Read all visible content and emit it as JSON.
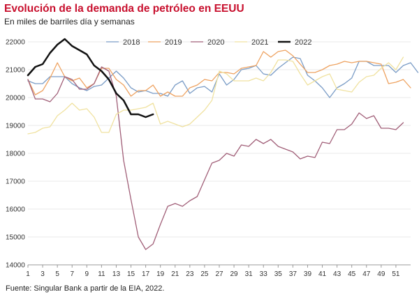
{
  "chart_data": {
    "type": "line",
    "title": "Evolución de la demanda de petróleo en EEUU",
    "subtitle": "En miles de barriles día y semanas",
    "source": "Fuente:  Singular Bank a partir de la EIA, 2022.",
    "ylim": [
      14000,
      22000
    ],
    "yticks": [
      14000,
      15000,
      16000,
      17000,
      18000,
      19000,
      20000,
      21000,
      22000
    ],
    "xlim": [
      1,
      53
    ],
    "xticks": [
      1,
      3,
      5,
      7,
      9,
      11,
      13,
      15,
      17,
      19,
      21,
      23,
      25,
      27,
      29,
      31,
      33,
      35,
      37,
      39,
      41,
      43,
      45,
      47,
      49,
      51
    ],
    "legend_position": "top-right",
    "series": [
      {
        "name": "2018",
        "color": "#7a9cc6",
        "width": 1.3,
        "values": [
          20600,
          20500,
          20500,
          20750,
          20750,
          20750,
          20500,
          20350,
          20250,
          20400,
          20450,
          20700,
          20950,
          20700,
          20350,
          20200,
          20250,
          20150,
          20150,
          20050,
          20450,
          20600,
          20150,
          20350,
          20400,
          20200,
          20850,
          20450,
          20650,
          21000,
          21050,
          21150,
          20850,
          20800,
          21050,
          21250,
          21450,
          21400,
          20800,
          20600,
          20350,
          20000,
          20350,
          20500,
          20700,
          21300,
          21300,
          21150,
          21150,
          21150,
          20900,
          21150,
          21250,
          20900
        ]
      },
      {
        "name": "2019",
        "color": "#eea260",
        "width": 1.3,
        "values": [
          20650,
          20100,
          20250,
          20700,
          21250,
          20750,
          20600,
          20700,
          20350,
          20500,
          21050,
          21050,
          20650,
          20450,
          20050,
          20250,
          20250,
          20450,
          20050,
          20200,
          20050,
          20050,
          20350,
          20450,
          20650,
          20600,
          20900,
          20900,
          20850,
          21050,
          21100,
          21150,
          21650,
          21450,
          21650,
          21700,
          21500,
          21200,
          20900,
          20900,
          21000,
          21150,
          21200,
          21300,
          21250,
          21300,
          21300,
          21250,
          21200,
          20500,
          20550,
          20650,
          20350
        ]
      },
      {
        "name": "2020",
        "color": "#a15f78",
        "width": 1.3,
        "values": [
          20650,
          19950,
          19950,
          19850,
          20150,
          20750,
          20650,
          20300,
          20300,
          20500,
          21100,
          20950,
          20050,
          17750,
          16350,
          15000,
          14550,
          14750,
          15450,
          16100,
          16200,
          16100,
          16300,
          16450,
          17050,
          17650,
          17750,
          18000,
          17900,
          18300,
          18250,
          18500,
          18350,
          18500,
          18250,
          18150,
          18050,
          17800,
          17900,
          17850,
          18400,
          18350,
          18850,
          18850,
          19050,
          19450,
          19250,
          19350,
          18900,
          18900,
          18850,
          19100
        ]
      },
      {
        "name": "2021",
        "color": "#f0e2a0",
        "width": 1.3,
        "values": [
          18700,
          18750,
          18900,
          18950,
          19350,
          19550,
          19800,
          19550,
          19600,
          19300,
          18750,
          18750,
          19400,
          19550,
          19550,
          19600,
          19650,
          19800,
          19050,
          19150,
          19050,
          18950,
          19050,
          19300,
          19550,
          19900,
          20950,
          20850,
          20600,
          20600,
          20600,
          20700,
          20600,
          20900,
          21350,
          21350,
          21300,
          20850,
          20450,
          20600,
          20750,
          20850,
          20300,
          20250,
          20200,
          20550,
          20750,
          20800,
          21050,
          21250,
          21000,
          21450
        ]
      },
      {
        "name": "2022",
        "color": "#111111",
        "width": 2.5,
        "values": [
          20800,
          21100,
          21200,
          21600,
          21900,
          22100,
          21850,
          21700,
          21550,
          21150,
          20950,
          20650,
          20150,
          19900,
          19400,
          19400,
          19300,
          19400
        ]
      }
    ]
  }
}
